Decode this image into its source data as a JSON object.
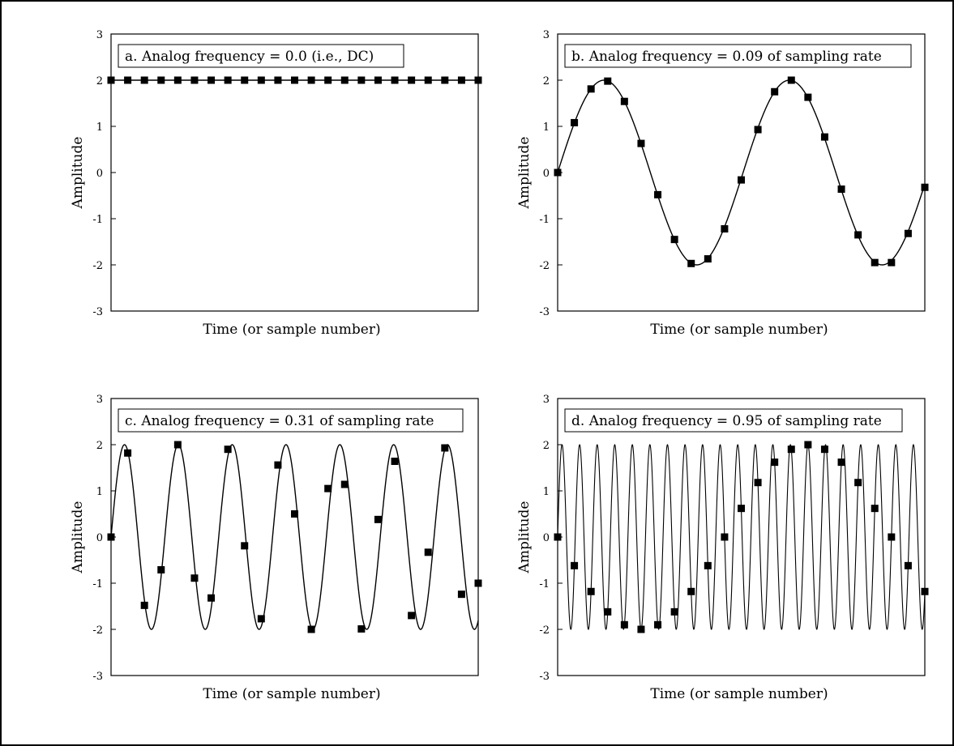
{
  "chart_data": [
    {
      "type": "line",
      "title": "a.  Analog frequency = 0.0  (i.e., DC)",
      "xlabel": "Time (or sample number)",
      "ylabel": "Amplitude",
      "ylim": [
        -3,
        3
      ],
      "yticks": [
        "3",
        "2",
        "1",
        "0",
        "-1",
        "-2",
        "-3"
      ],
      "xlim": [
        0,
        22
      ],
      "grid": false,
      "analog": {
        "amplitude": 2,
        "frequency": 0.0,
        "offset": 2
      },
      "samples": {
        "x": [
          0,
          1,
          2,
          3,
          4,
          5,
          6,
          7,
          8,
          9,
          10,
          11,
          12,
          13,
          14,
          15,
          16,
          17,
          18,
          19,
          20,
          21,
          22
        ],
        "y": [
          2,
          2,
          2,
          2,
          2,
          2,
          2,
          2,
          2,
          2,
          2,
          2,
          2,
          2,
          2,
          2,
          2,
          2,
          2,
          2,
          2,
          2,
          2
        ]
      }
    },
    {
      "type": "line",
      "title": "b.  Analog frequency = 0.09 of sampling rate",
      "xlabel": "Time (or sample number)",
      "ylabel": "Amplitude",
      "ylim": [
        -3,
        3
      ],
      "yticks": [
        "3",
        "2",
        "1",
        "0",
        "-1",
        "-2",
        "-3"
      ],
      "xlim": [
        0,
        22
      ],
      "grid": false,
      "analog": {
        "amplitude": 2,
        "frequency": 0.09,
        "offset": 0
      },
      "samples": {
        "x": [
          0,
          1,
          2,
          3,
          4,
          5,
          6,
          7,
          8,
          9,
          10,
          11,
          12,
          13,
          14,
          15,
          16,
          17,
          18,
          19,
          20,
          21,
          22
        ],
        "y": [
          0,
          1.08,
          1.81,
          1.98,
          1.54,
          0.63,
          -0.48,
          -1.45,
          -1.97,
          -1.87,
          -1.22,
          -0.16,
          0.93,
          1.75,
          2.0,
          1.63,
          0.77,
          -0.36,
          -1.35,
          -1.95,
          -1.95,
          -1.32,
          -0.32
        ]
      }
    },
    {
      "type": "line",
      "title": "c.  Analog frequency = 0.31 of sampling rate",
      "xlabel": "Time (or sample number)",
      "ylabel": "Amplitude",
      "ylim": [
        -3,
        3
      ],
      "yticks": [
        "3",
        "2",
        "1",
        "0",
        "-1",
        "-2",
        "-3"
      ],
      "xlim": [
        0,
        22
      ],
      "grid": false,
      "analog": {
        "amplitude": 2,
        "frequency": 0.31,
        "offset": 0
      },
      "samples": {
        "x": [
          0,
          1,
          2,
          3,
          4,
          5,
          6,
          7,
          8,
          9,
          10,
          11,
          12,
          13,
          14,
          15,
          16,
          17,
          18,
          19,
          20,
          21,
          22
        ],
        "y": [
          0,
          1.82,
          -1.48,
          -0.71,
          2.0,
          -0.89,
          -1.32,
          1.9,
          -0.19,
          -1.77,
          1.56,
          0.5,
          -2.0,
          1.05,
          1.14,
          -1.99,
          0.38,
          1.64,
          -1.7,
          -0.33,
          1.93,
          -1.24,
          -1.0
        ]
      }
    },
    {
      "type": "line",
      "title": "d.  Analog frequency = 0.95 of sampling rate",
      "xlabel": "Time (or sample number)",
      "ylabel": "Amplitude",
      "ylim": [
        -3,
        3
      ],
      "yticks": [
        "3",
        "2",
        "1",
        "0",
        "-1",
        "-2",
        "-3"
      ],
      "xlim": [
        0,
        22
      ],
      "grid": false,
      "analog": {
        "amplitude": 2,
        "frequency": 0.95,
        "offset": 0
      },
      "samples": {
        "x": [
          0,
          1,
          2,
          3,
          4,
          5,
          6,
          7,
          8,
          9,
          10,
          11,
          12,
          13,
          14,
          15,
          16,
          17,
          18,
          19,
          20,
          21,
          22
        ],
        "y": [
          0,
          -0.62,
          -1.18,
          -1.62,
          -1.9,
          -2.0,
          -1.9,
          -1.62,
          -1.18,
          -0.62,
          0,
          0.62,
          1.18,
          1.62,
          1.9,
          2.0,
          1.9,
          1.62,
          1.18,
          0.62,
          0,
          -0.62,
          -1.18
        ]
      }
    }
  ]
}
